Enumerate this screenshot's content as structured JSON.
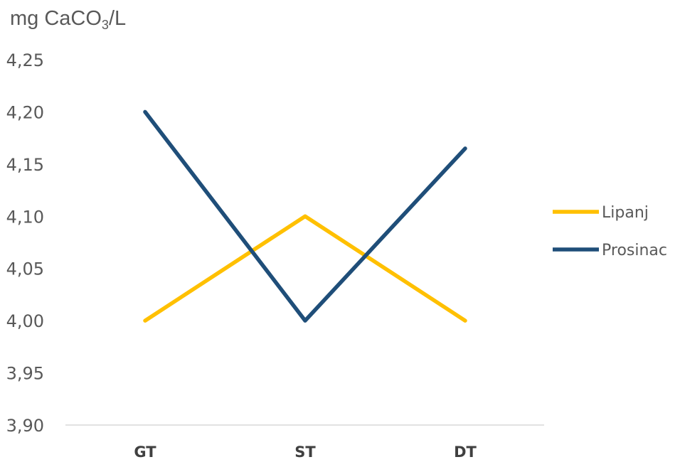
{
  "chart_data": {
    "type": "line",
    "ylabel": {
      "prefix": "mg CaCO",
      "subscript": "3",
      "suffix": "/L"
    },
    "categories": [
      "GT",
      "ST",
      "DT"
    ],
    "ylim": [
      3.9,
      4.25
    ],
    "yticks": [
      "3,90",
      "3,95",
      "4,00",
      "4,05",
      "4,10",
      "4,15",
      "4,20",
      "4,25"
    ],
    "grid": false,
    "legend_position": "right",
    "series": [
      {
        "name": "Lipanj",
        "color": "#FFC000",
        "values": [
          4.0,
          4.1,
          4.0
        ]
      },
      {
        "name": "Prosinac",
        "color": "#1F4E79",
        "values": [
          4.2,
          4.0,
          4.165
        ]
      }
    ]
  }
}
